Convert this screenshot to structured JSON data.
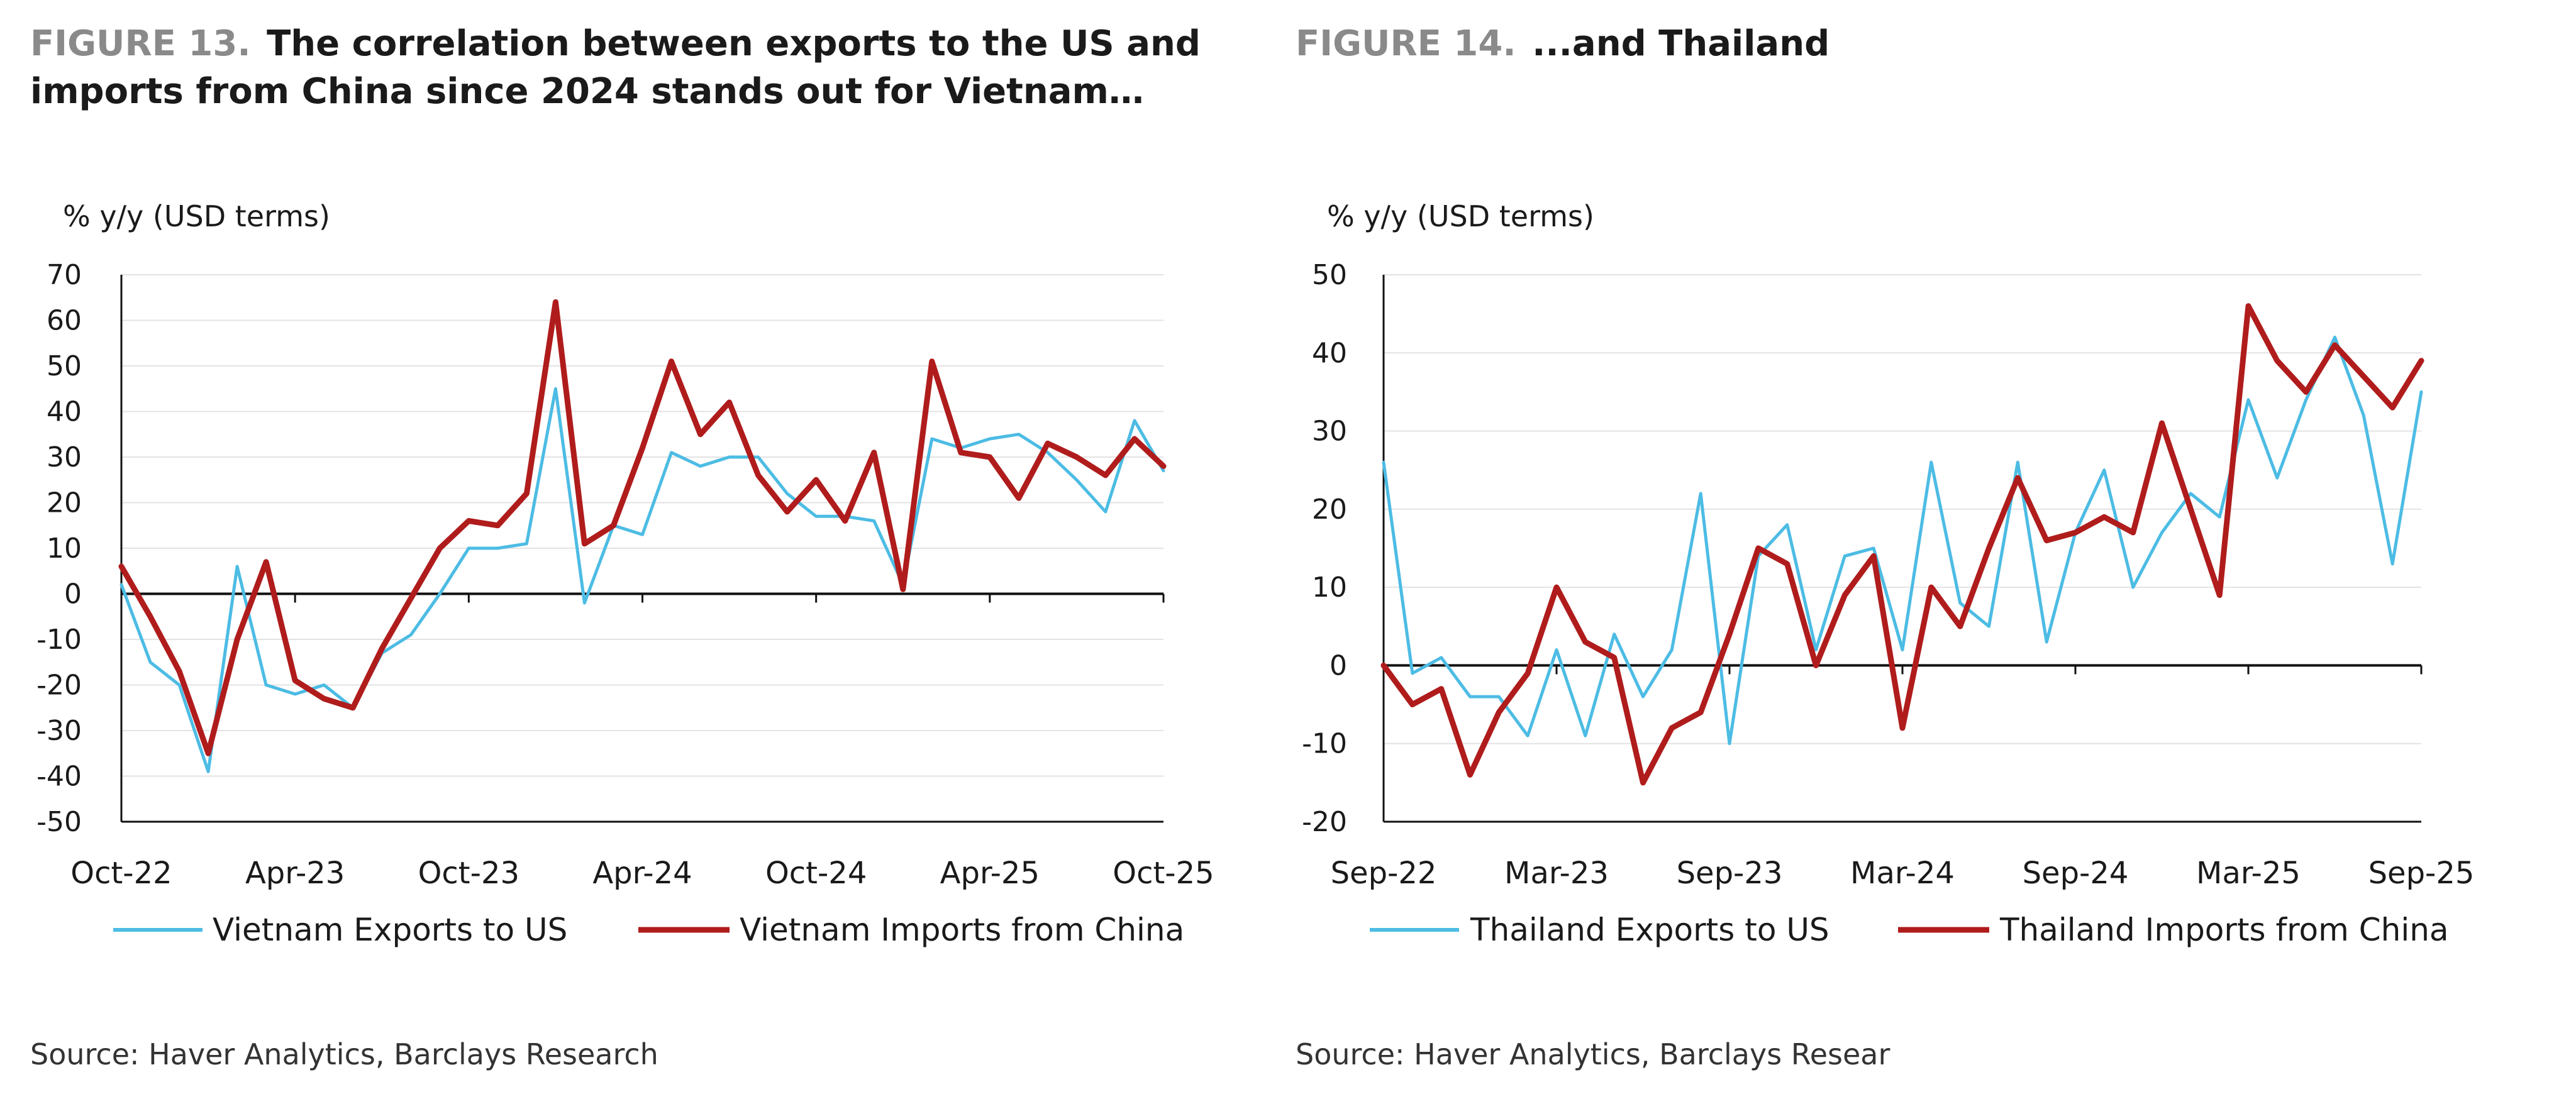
{
  "figures": [
    {
      "number": "FIGURE 13.",
      "title": "The correlation between exports to the US and imports from China since 2024 stands out for Vietnam…",
      "source": "Source: Haver Analytics, Barclays Research"
    },
    {
      "number": "FIGURE 14.",
      "title": "...and Thailand",
      "source": "Source: Haver Analytics, Barclays Resear"
    }
  ],
  "colors": {
    "exports": "#4cbce4",
    "imports": "#b01c1c",
    "grid": "#e3e3e3",
    "axis": "#111111"
  },
  "chart_data": [
    {
      "type": "line",
      "title": "The correlation between exports to the US and imports from China since 2024 stands out for Vietnam…",
      "ylabel": "% y/y (USD terms)",
      "xlabel": "",
      "ylim": [
        -50,
        70
      ],
      "yticks": [
        70,
        60,
        50,
        40,
        30,
        20,
        10,
        0,
        -10,
        -20,
        -30,
        -40,
        -50
      ],
      "grid": true,
      "legend": "bottom",
      "xtick_labels": [
        "Oct-22",
        "Apr-23",
        "Oct-23",
        "Apr-24",
        "Oct-24",
        "Apr-25",
        "Oct-25"
      ],
      "xtick_index": [
        0,
        6,
        12,
        18,
        24,
        30,
        36
      ],
      "n_points": 37,
      "series": [
        {
          "name": "Vietnam Exports to US",
          "key": "exports",
          "values": [
            2,
            -15,
            -20,
            -39,
            6,
            -20,
            -22,
            -20,
            -25,
            -13,
            -9,
            0,
            10,
            10,
            11,
            45,
            -2,
            15,
            13,
            31,
            28,
            30,
            30,
            22,
            17,
            17,
            16,
            2,
            34,
            32,
            34,
            35,
            31,
            25,
            18,
            38,
            27
          ]
        },
        {
          "name": "Vietnam Imports from China",
          "key": "imports",
          "values": [
            6,
            -5,
            -17,
            -35,
            -10,
            7,
            -19,
            -23,
            -25,
            -12,
            -1,
            10,
            16,
            15,
            22,
            64,
            11,
            15,
            32,
            51,
            35,
            42,
            26,
            18,
            25,
            16,
            31,
            1,
            51,
            31,
            30,
            21,
            33,
            30,
            26,
            34,
            28
          ]
        }
      ]
    },
    {
      "type": "line",
      "title": "...and Thailand",
      "ylabel": "% y/y (USD terms)",
      "xlabel": "",
      "ylim": [
        -20,
        50
      ],
      "yticks": [
        50,
        40,
        30,
        20,
        10,
        0,
        -10,
        -20
      ],
      "grid": true,
      "legend": "bottom",
      "xtick_labels": [
        "Sep-22",
        "Mar-23",
        "Sep-23",
        "Mar-24",
        "Sep-24",
        "Mar-25",
        "Sep-25"
      ],
      "xtick_index": [
        0,
        6,
        12,
        18,
        24,
        30,
        36
      ],
      "n_points": 37,
      "series": [
        {
          "name": "Thailand Exports to US",
          "key": "exports",
          "values": [
            26,
            -1,
            1,
            -4,
            -4,
            -9,
            2,
            -9,
            4,
            -4,
            2,
            22,
            -10,
            14,
            18,
            2,
            14,
            15,
            2,
            26,
            8,
            5,
            26,
            3,
            17,
            25,
            10,
            17,
            22,
            19,
            34,
            24,
            34,
            42,
            32,
            13,
            35
          ]
        },
        {
          "name": "Thailand Imports from China",
          "key": "imports",
          "values": [
            0,
            -5,
            -3,
            -14,
            -6,
            -1,
            10,
            3,
            1,
            -15,
            -8,
            -6,
            4,
            15,
            13,
            0,
            9,
            14,
            -8,
            10,
            5,
            15,
            24,
            16,
            17,
            19,
            17,
            31,
            20,
            9,
            46,
            39,
            35,
            41,
            37,
            33,
            39
          ]
        }
      ]
    }
  ]
}
